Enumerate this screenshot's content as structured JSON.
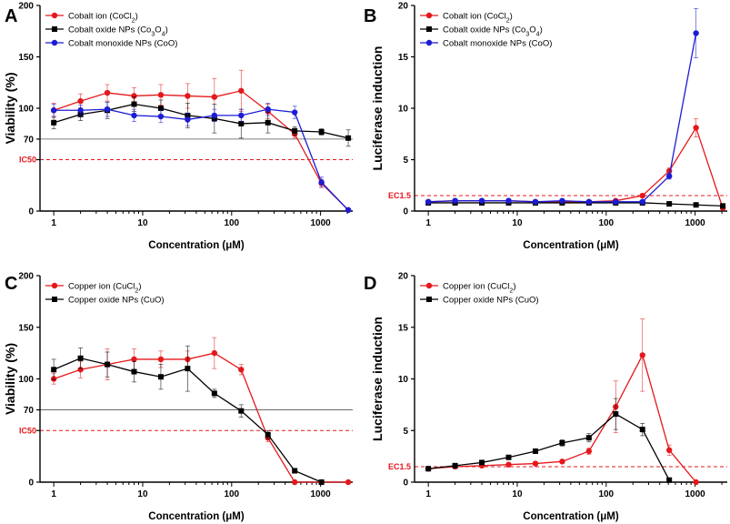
{
  "chart_data": [
    {
      "type": "line",
      "panel": "A",
      "ylabel": "Viability (%)",
      "xlabel": "Concentration (μM)",
      "xscale": "log",
      "xlim": [
        0.7,
        2300
      ],
      "ylim": [
        0,
        200
      ],
      "x_ticks": [
        1,
        10,
        100,
        1000
      ],
      "y_ticks": [
        0,
        50,
        100,
        150,
        200
      ],
      "y_tick_labels": [
        "0",
        "",
        "100",
        "150",
        "200"
      ],
      "extra_ytick": {
        "value": 70,
        "label": "70"
      },
      "ref_lines": [
        {
          "y": 70,
          "label": "",
          "style": "solid"
        },
        {
          "y": 50,
          "label": "IC50",
          "style": "dashed"
        }
      ],
      "series": [
        {
          "name": "Cobalt ion (CoCl2)",
          "label_main": "Cobalt ion (CoCl",
          "label_sub": "2",
          "label_end": ")",
          "color": "#e4181c",
          "marker": "circle",
          "x": [
            1,
            2,
            4,
            8,
            16,
            32,
            64,
            128,
            256,
            512,
            1024,
            2048
          ],
          "y": [
            98,
            107,
            115,
            112,
            113,
            112,
            111,
            117,
            97,
            75,
            27,
            1
          ],
          "err": [
            7,
            7,
            8,
            8,
            10,
            12,
            18,
            20,
            7,
            4,
            4,
            1
          ]
        },
        {
          "name": "Cobalt oxide NPs (Co3O4)",
          "label_main": "Cobalt oxide NPs (Co",
          "label_sub": "3",
          "label_mid": "O",
          "label_sub2": "4",
          "label_end": ")",
          "color": "#000000",
          "marker": "square",
          "x": [
            1,
            2,
            4,
            8,
            16,
            32,
            64,
            128,
            256,
            512,
            1024,
            2048
          ],
          "y": [
            86,
            94,
            98,
            104,
            100,
            93,
            90,
            85,
            86,
            78,
            77,
            71
          ],
          "err": [
            6,
            6,
            8,
            7,
            8,
            12,
            14,
            14,
            10,
            4,
            3,
            8
          ]
        },
        {
          "name": "Cobalt monoxide NPs (CoO)",
          "label_main": "Cobalt monoxide NPs (CoO)",
          "color": "#1c1cd4",
          "marker": "circle",
          "x": [
            1,
            2,
            4,
            8,
            16,
            32,
            64,
            128,
            256,
            512,
            1024,
            2048
          ],
          "y": [
            98,
            98,
            99,
            93,
            92,
            89,
            93,
            93,
            99,
            96,
            28,
            1
          ],
          "err": [
            6,
            5,
            7,
            6,
            6,
            6,
            6,
            6,
            6,
            6,
            5,
            1
          ]
        }
      ]
    },
    {
      "type": "line",
      "panel": "B",
      "ylabel": "Luciferase induction",
      "xlabel": "Concentration (μM)",
      "xscale": "log",
      "xlim": [
        0.7,
        2300
      ],
      "ylim": [
        0,
        20
      ],
      "x_ticks": [
        1,
        10,
        100,
        1000
      ],
      "y_ticks": [
        0,
        5,
        10,
        15,
        20
      ],
      "y_tick_labels": [
        "0",
        "5",
        "10",
        "15",
        "20"
      ],
      "ref_lines": [
        {
          "y": 1.5,
          "label": "EC1.5",
          "style": "dashed"
        }
      ],
      "series": [
        {
          "name": "Cobalt ion (CoCl2)",
          "label_main": "Cobalt ion (CoCl",
          "label_sub": "2",
          "label_end": ")",
          "color": "#e4181c",
          "marker": "circle",
          "x": [
            1,
            2,
            4,
            8,
            16,
            32,
            64,
            128,
            256,
            512,
            1024,
            2048
          ],
          "y": [
            0.9,
            1.0,
            1.0,
            1.0,
            0.9,
            0.9,
            0.9,
            1.0,
            1.5,
            3.9,
            8.1,
            0.3
          ],
          "err": [
            0.05,
            0.05,
            0.05,
            0.05,
            0.05,
            0.05,
            0.05,
            0.1,
            0.1,
            0.3,
            0.9,
            0.1
          ]
        },
        {
          "name": "Cobalt oxide NPs (Co3O4)",
          "label_main": "Cobalt oxide NPs (Co",
          "label_sub": "3",
          "label_mid": "O",
          "label_sub2": "4",
          "label_end": ")",
          "color": "#000000",
          "marker": "square",
          "x": [
            1,
            2,
            4,
            8,
            16,
            32,
            64,
            128,
            256,
            512,
            1024,
            2048
          ],
          "y": [
            0.8,
            0.8,
            0.8,
            0.8,
            0.8,
            0.8,
            0.8,
            0.8,
            0.8,
            0.7,
            0.6,
            0.5
          ],
          "err": [
            0.05,
            0.05,
            0.05,
            0.05,
            0.05,
            0.05,
            0.05,
            0.05,
            0.05,
            0.05,
            0.05,
            0.05
          ]
        },
        {
          "name": "Cobalt monoxide NPs (CoO)",
          "label_main": "Cobalt monoxide NPs (CoO)",
          "color": "#1c1cd4",
          "marker": "circle",
          "x": [
            1,
            2,
            4,
            8,
            16,
            32,
            64,
            128,
            256,
            512,
            1024
          ],
          "y": [
            0.9,
            1.0,
            1.0,
            1.0,
            0.9,
            1.0,
            0.9,
            0.9,
            0.9,
            3.4,
            17.3
          ],
          "err": [
            0.05,
            0.05,
            0.05,
            0.05,
            0.05,
            0.05,
            0.05,
            0.05,
            0.05,
            0.3,
            2.4
          ]
        }
      ]
    },
    {
      "type": "line",
      "panel": "C",
      "ylabel": "Viability (%)",
      "xlabel": "Concentration (μM)",
      "xscale": "log",
      "xlim": [
        0.7,
        2300
      ],
      "ylim": [
        0,
        200
      ],
      "x_ticks": [
        1,
        10,
        100,
        1000
      ],
      "y_ticks": [
        0,
        50,
        100,
        150,
        200
      ],
      "y_tick_labels": [
        "0",
        "",
        "100",
        "150",
        "200"
      ],
      "extra_ytick": {
        "value": 70,
        "label": "70"
      },
      "ref_lines": [
        {
          "y": 70,
          "label": "",
          "style": "solid"
        },
        {
          "y": 50,
          "label": "IC50",
          "style": "dashed"
        }
      ],
      "series": [
        {
          "name": "Copper ion (CuCl2)",
          "label_main": "Copper ion (CuCl",
          "label_sub": "2",
          "label_end": ")",
          "color": "#e4181c",
          "marker": "circle",
          "x": [
            1,
            2,
            4,
            8,
            16,
            32,
            64,
            128,
            256,
            512,
            1024,
            2048
          ],
          "y": [
            100,
            109,
            114,
            119,
            119,
            119,
            125,
            109,
            43,
            0,
            0,
            0
          ],
          "err": [
            5,
            8,
            15,
            10,
            8,
            8,
            15,
            5,
            4,
            1,
            0,
            0
          ]
        },
        {
          "name": "Copper oxide NPs (CuO)",
          "label_main": "Copper oxide NPs (CuO)",
          "color": "#000000",
          "marker": "square",
          "x": [
            1,
            2,
            4,
            8,
            16,
            32,
            64,
            128,
            256,
            512,
            1024
          ],
          "y": [
            109,
            120,
            114,
            107,
            102,
            110,
            86,
            69,
            46,
            11,
            0
          ],
          "err": [
            10,
            10,
            12,
            10,
            12,
            22,
            4,
            6,
            4,
            2,
            1
          ]
        }
      ]
    },
    {
      "type": "line",
      "panel": "D",
      "ylabel": "Luciferase induction",
      "xlabel": "Concentration (μM)",
      "xscale": "log",
      "xlim": [
        0.7,
        2300
      ],
      "ylim": [
        0,
        20
      ],
      "x_ticks": [
        1,
        10,
        100,
        1000
      ],
      "y_ticks": [
        0,
        5,
        10,
        15,
        20
      ],
      "y_tick_labels": [
        "0",
        "5",
        "10",
        "15",
        "20"
      ],
      "ref_lines": [
        {
          "y": 1.5,
          "label": "EC1.5",
          "style": "dashed"
        }
      ],
      "series": [
        {
          "name": "Copper ion (CuCl2)",
          "label_main": "Copper ion (CuCl",
          "label_sub": "2",
          "label_end": ")",
          "color": "#e4181c",
          "marker": "circle",
          "x": [
            1,
            2,
            4,
            8,
            16,
            32,
            64,
            128,
            256,
            512,
            1024
          ],
          "y": [
            1.3,
            1.5,
            1.6,
            1.7,
            1.8,
            2.0,
            3.0,
            7.3,
            12.3,
            3.1,
            0.0
          ],
          "err": [
            0.1,
            0.1,
            0.1,
            0.1,
            0.1,
            0.1,
            0.3,
            2.5,
            3.5,
            0.5,
            0.0
          ]
        },
        {
          "name": "Copper oxide NPs (CuO)",
          "label_main": "Copper oxide NPs (CuO)",
          "color": "#000000",
          "marker": "square",
          "x": [
            1,
            2,
            4,
            8,
            16,
            32,
            64,
            128,
            256,
            512
          ],
          "y": [
            1.3,
            1.6,
            1.9,
            2.4,
            3.0,
            3.8,
            4.3,
            6.6,
            5.1,
            0.2
          ],
          "err": [
            0.1,
            0.1,
            0.1,
            0.2,
            0.2,
            0.3,
            0.4,
            1.5,
            0.6,
            0.1
          ]
        }
      ]
    }
  ]
}
